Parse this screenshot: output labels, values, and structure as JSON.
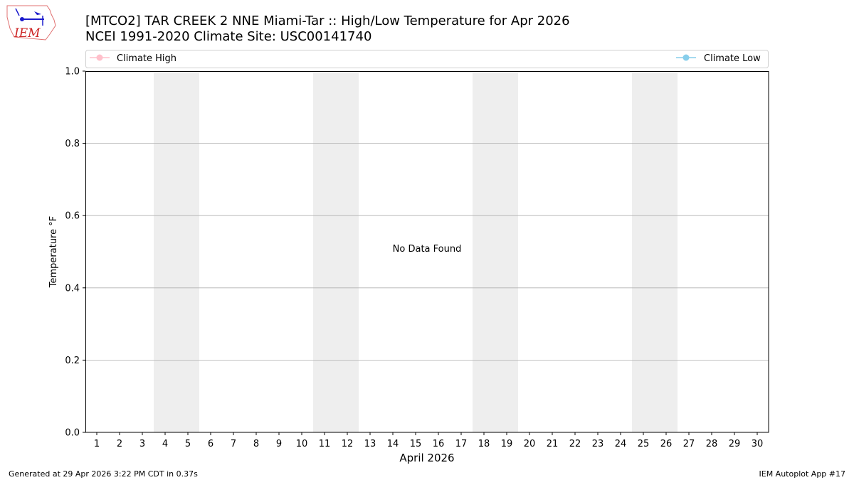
{
  "title_line1": "[MTCO2] TAR CREEK 2 NNE Miami-Tar :: High/Low Temperature for Apr 2026",
  "title_line2": "NCEI 1991-2020 Climate Site: USC00141740",
  "logo_text": "IEM",
  "footer_left": "Generated at 29 Apr 2026 3:22 PM CDT in 0.37s",
  "footer_right": "IEM Autoplot App #17",
  "chart_data": {
    "type": "line",
    "xlabel": "April 2026",
    "ylabel": "Temperature °F",
    "x_ticks": [
      1,
      2,
      3,
      4,
      5,
      6,
      7,
      8,
      9,
      10,
      11,
      12,
      13,
      14,
      15,
      16,
      17,
      18,
      19,
      20,
      21,
      22,
      23,
      24,
      25,
      26,
      27,
      28,
      29,
      30
    ],
    "xlim": [
      0.5,
      30.5
    ],
    "ylim": [
      0.0,
      1.0
    ],
    "y_ticks": [
      "0.0",
      "0.2",
      "0.4",
      "0.6",
      "0.8",
      "1.0"
    ],
    "y_grid": true,
    "weekend_shading": [
      [
        3.5,
        5.5
      ],
      [
        10.5,
        12.5
      ],
      [
        17.5,
        19.5
      ],
      [
        24.5,
        26.5
      ]
    ],
    "shade_color": "#eeeeee",
    "annotation": "No Data Found",
    "legend_placement": "top",
    "series": [
      {
        "name": "Climate High",
        "color": "#ffc0cb",
        "values": []
      },
      {
        "name": "Climate Low",
        "color": "#87ceeb",
        "values": []
      }
    ]
  }
}
